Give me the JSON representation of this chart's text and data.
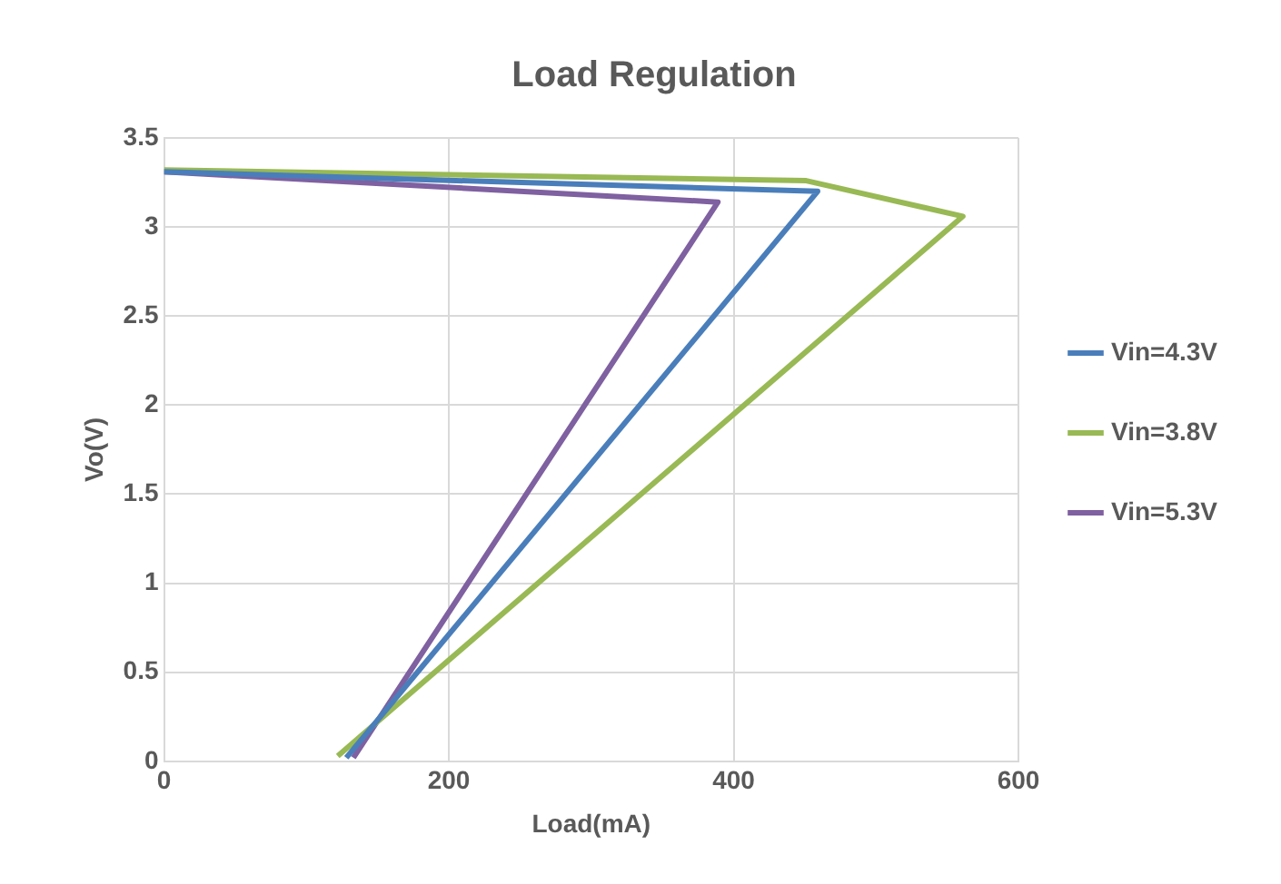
{
  "chart_data": {
    "type": "line",
    "title": "Load Regulation",
    "xlabel": "Load(mA)",
    "ylabel": "Vo(V)",
    "xlim": [
      0,
      600
    ],
    "xticks": [
      0,
      200,
      400,
      600
    ],
    "ylim": [
      0,
      3.5
    ],
    "yticks": [
      0,
      0.5,
      1,
      1.5,
      2,
      2.5,
      3,
      3.5
    ],
    "grid": true,
    "legend": "right",
    "marker": "none",
    "line_style": "solid",
    "series": [
      {
        "name": "Vin=4.3V",
        "color": "#4a7ebb",
        "x": [
          0,
          459,
          128
        ],
        "values": [
          3.31,
          3.2,
          0.02
        ]
      },
      {
        "name": "Vin=3.8V",
        "color": "#98b954",
        "x": [
          0,
          451,
          561,
          122
        ],
        "values": [
          3.32,
          3.26,
          3.06,
          0.03
        ]
      },
      {
        "name": "Vin=5.3V",
        "color": "#7f60a0",
        "x": [
          0,
          389,
          133
        ],
        "values": [
          3.31,
          3.14,
          0.02
        ]
      }
    ]
  }
}
